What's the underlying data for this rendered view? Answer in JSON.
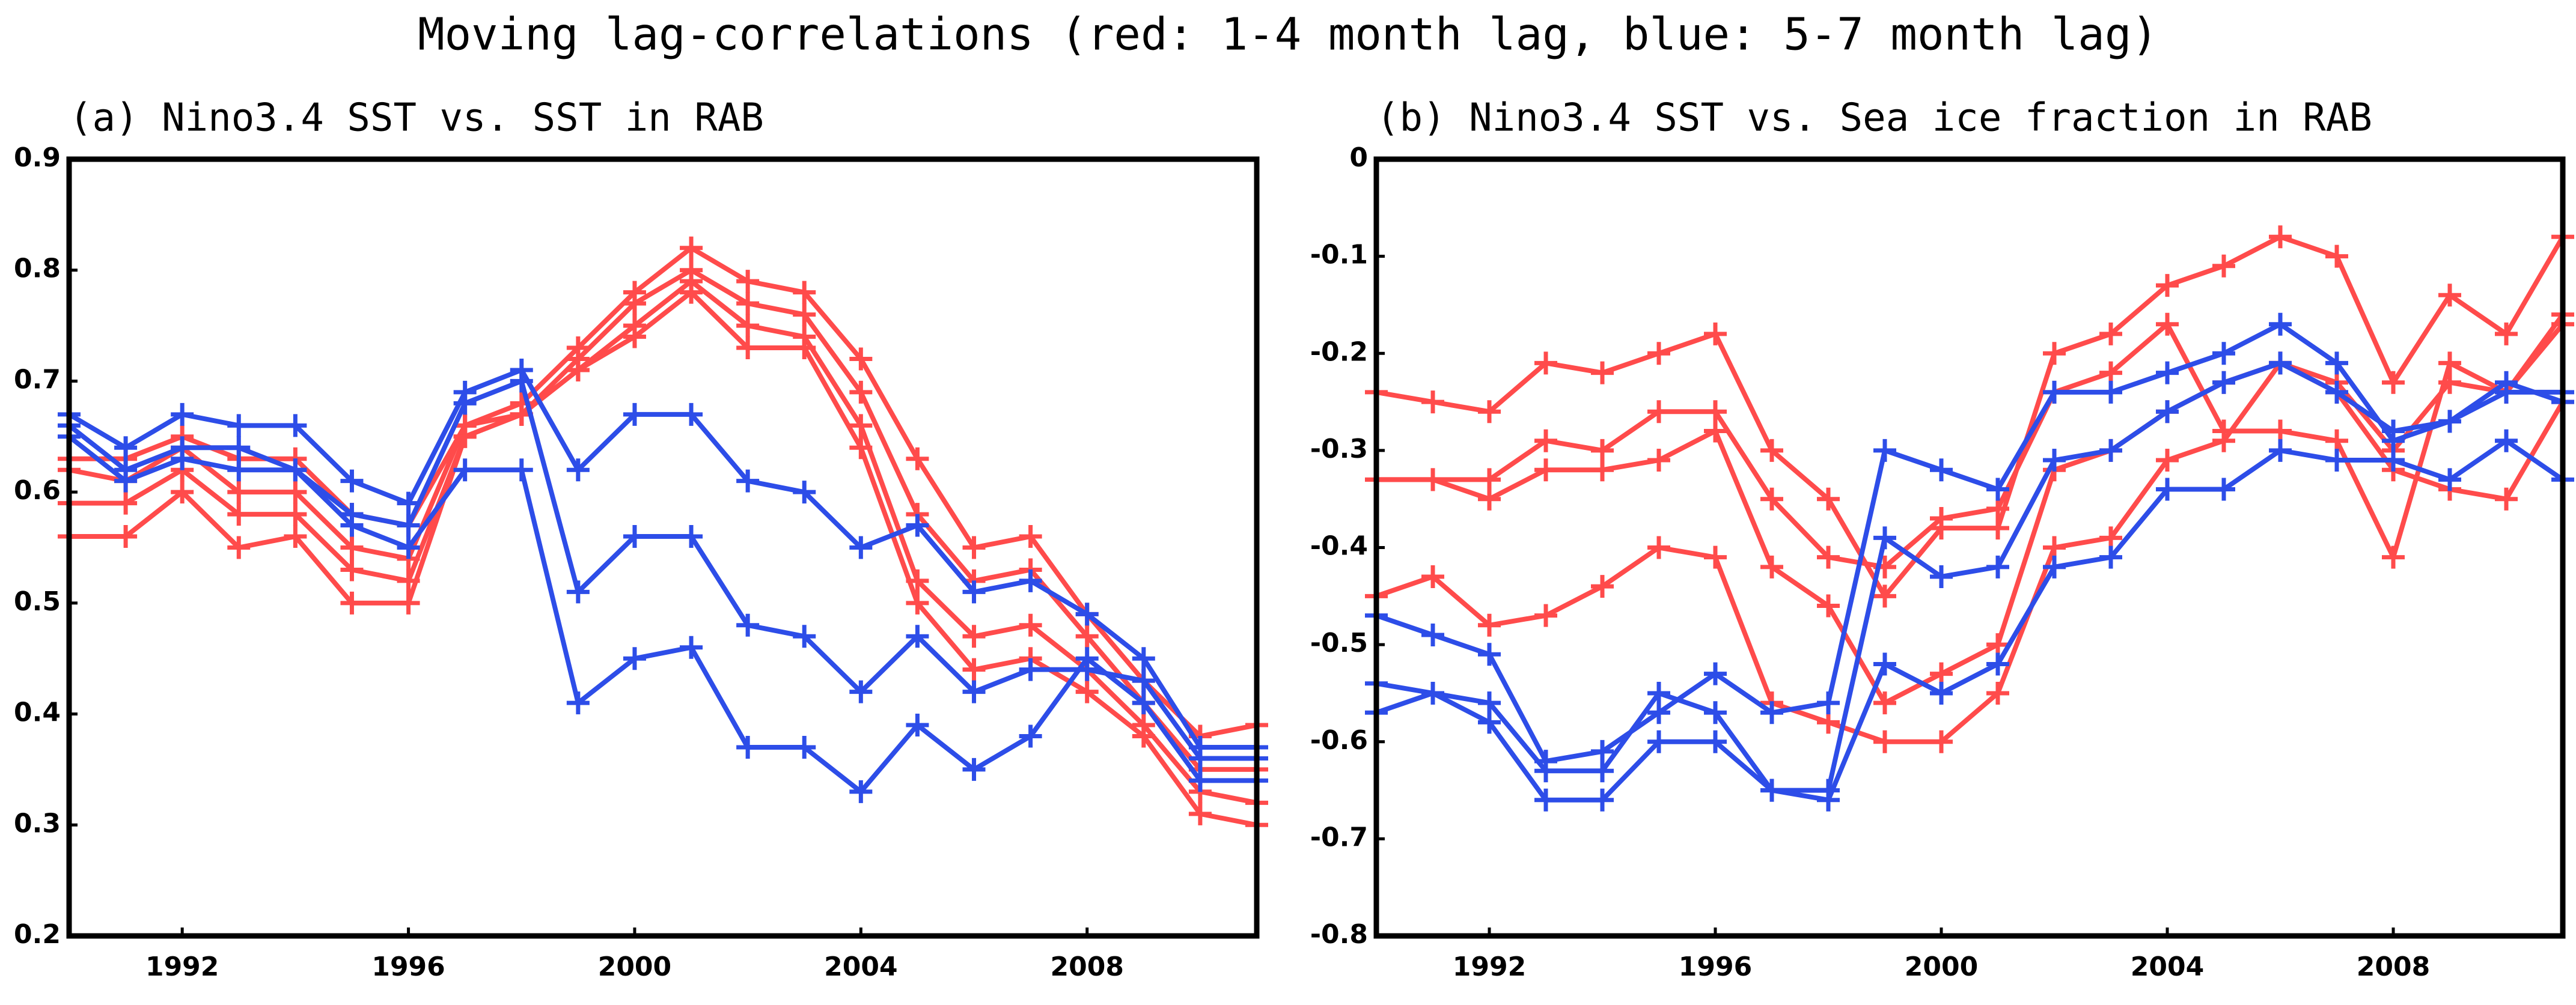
{
  "title": "Moving lag-correlations (red: 1-4 month lag, blue: 5-7 month lag)",
  "chart_data": [
    {
      "type": "line",
      "title": "(a) Nino3.4 SST vs. SST in RAB",
      "x": [
        1990,
        1991,
        1992,
        1993,
        1994,
        1995,
        1996,
        1997,
        1998,
        1999,
        2000,
        2001,
        2002,
        2003,
        2004,
        2005,
        2006,
        2007,
        2008,
        2009,
        2010,
        2011
      ],
      "xlim": [
        1990,
        2011
      ],
      "xticks": [
        1992,
        1996,
        2000,
        2004,
        2008
      ],
      "ylim": [
        0.2,
        0.9
      ],
      "yticks": [
        0.2,
        0.3,
        0.4,
        0.5,
        0.6,
        0.7,
        0.8,
        0.9
      ],
      "series": [
        {
          "color": "#ff4b4b",
          "values": [
            0.63,
            0.63,
            0.65,
            0.63,
            0.63,
            0.58,
            0.57,
            0.66,
            0.68,
            0.73,
            0.78,
            0.82,
            0.79,
            0.78,
            0.72,
            0.63,
            0.55,
            0.56,
            0.49,
            0.43,
            0.38,
            0.39
          ]
        },
        {
          "color": "#ff4b4b",
          "values": [
            0.62,
            0.61,
            0.64,
            0.6,
            0.6,
            0.55,
            0.54,
            0.66,
            0.67,
            0.72,
            0.77,
            0.8,
            0.77,
            0.76,
            0.69,
            0.58,
            0.52,
            0.53,
            0.47,
            0.41,
            0.35,
            0.35
          ]
        },
        {
          "color": "#ff4b4b",
          "values": [
            0.59,
            0.59,
            0.62,
            0.58,
            0.58,
            0.53,
            0.52,
            0.65,
            0.67,
            0.71,
            0.75,
            0.79,
            0.75,
            0.74,
            0.66,
            0.52,
            0.47,
            0.48,
            0.44,
            0.39,
            0.33,
            0.32
          ]
        },
        {
          "color": "#ff4b4b",
          "values": [
            0.56,
            0.56,
            0.6,
            0.55,
            0.56,
            0.5,
            0.5,
            0.65,
            0.67,
            0.71,
            0.74,
            0.78,
            0.73,
            0.73,
            0.64,
            0.5,
            0.44,
            0.45,
            0.42,
            0.38,
            0.31,
            0.3
          ]
        },
        {
          "color": "#2d4de8",
          "values": [
            0.67,
            0.64,
            0.67,
            0.66,
            0.66,
            0.61,
            0.59,
            0.69,
            0.71,
            0.62,
            0.67,
            0.67,
            0.61,
            0.6,
            0.55,
            0.57,
            0.51,
            0.52,
            0.49,
            0.45,
            0.37,
            0.37
          ]
        },
        {
          "color": "#2d4de8",
          "values": [
            0.66,
            0.62,
            0.64,
            0.64,
            0.62,
            0.58,
            0.57,
            0.68,
            0.7,
            0.51,
            0.56,
            0.56,
            0.48,
            0.47,
            0.42,
            0.47,
            0.42,
            0.44,
            0.44,
            0.43,
            0.36,
            0.36
          ]
        },
        {
          "color": "#2d4de8",
          "values": [
            0.65,
            0.61,
            0.63,
            0.62,
            0.62,
            0.57,
            0.55,
            0.62,
            0.62,
            0.41,
            0.45,
            0.46,
            0.37,
            0.37,
            0.33,
            0.39,
            0.35,
            0.38,
            0.45,
            0.41,
            0.34,
            0.34
          ]
        }
      ]
    },
    {
      "type": "line",
      "title": "(b) Nino3.4 SST vs. Sea ice fraction in RAB",
      "x": [
        1990,
        1991,
        1992,
        1993,
        1994,
        1995,
        1996,
        1997,
        1998,
        1999,
        2000,
        2001,
        2002,
        2003,
        2004,
        2005,
        2006,
        2007,
        2008,
        2009,
        2010,
        2011
      ],
      "xlim": [
        1990,
        2011
      ],
      "xticks": [
        1992,
        1996,
        2000,
        2004,
        2008
      ],
      "ylim": [
        -0.8,
        0
      ],
      "yticks": [
        -0.8,
        -0.7,
        -0.6,
        -0.5,
        -0.4,
        -0.3,
        -0.2,
        -0.1,
        0
      ],
      "series": [
        {
          "color": "#ff4b4b",
          "values": [
            -0.24,
            -0.25,
            -0.26,
            -0.21,
            -0.22,
            -0.2,
            -0.18,
            -0.3,
            -0.35,
            -0.45,
            -0.38,
            -0.38,
            -0.2,
            -0.18,
            -0.13,
            -0.11,
            -0.08,
            -0.1,
            -0.23,
            -0.14,
            -0.18,
            -0.08
          ]
        },
        {
          "color": "#ff4b4b",
          "values": [
            -0.33,
            -0.33,
            -0.33,
            -0.29,
            -0.3,
            -0.26,
            -0.26,
            -0.35,
            -0.41,
            -0.42,
            -0.37,
            -0.36,
            -0.24,
            -0.22,
            -0.17,
            -0.28,
            -0.28,
            -0.29,
            -0.41,
            -0.21,
            -0.24,
            -0.16
          ]
        },
        {
          "color": "#ff4b4b",
          "values": [
            -0.33,
            -0.33,
            -0.35,
            -0.32,
            -0.32,
            -0.31,
            -0.28,
            -0.42,
            -0.46,
            -0.56,
            -0.53,
            -0.5,
            -0.32,
            -0.3,
            -0.26,
            -0.23,
            -0.21,
            -0.23,
            -0.3,
            -0.23,
            -0.24,
            -0.17
          ]
        },
        {
          "color": "#ff4b4b",
          "values": [
            -0.45,
            -0.43,
            -0.48,
            -0.47,
            -0.44,
            -0.4,
            -0.41,
            -0.56,
            -0.58,
            -0.6,
            -0.6,
            -0.55,
            -0.4,
            -0.39,
            -0.31,
            -0.29,
            -0.21,
            -0.24,
            -0.32,
            -0.34,
            -0.35,
            -0.25
          ]
        },
        {
          "color": "#2d4de8",
          "values": [
            -0.47,
            -0.49,
            -0.51,
            -0.62,
            -0.61,
            -0.57,
            -0.53,
            -0.57,
            -0.56,
            -0.3,
            -0.32,
            -0.34,
            -0.24,
            -0.24,
            -0.22,
            -0.2,
            -0.17,
            -0.21,
            -0.29,
            -0.27,
            -0.23,
            -0.25
          ]
        },
        {
          "color": "#2d4de8",
          "values": [
            -0.54,
            -0.55,
            -0.56,
            -0.63,
            -0.63,
            -0.55,
            -0.57,
            -0.65,
            -0.65,
            -0.39,
            -0.43,
            -0.42,
            -0.31,
            -0.3,
            -0.26,
            -0.23,
            -0.21,
            -0.24,
            -0.28,
            -0.27,
            -0.24,
            -0.24
          ]
        },
        {
          "color": "#2d4de8",
          "values": [
            -0.57,
            -0.55,
            -0.58,
            -0.66,
            -0.66,
            -0.6,
            -0.6,
            -0.65,
            -0.66,
            -0.52,
            -0.55,
            -0.52,
            -0.42,
            -0.41,
            -0.34,
            -0.34,
            -0.3,
            -0.31,
            -0.31,
            -0.33,
            -0.29,
            -0.33
          ]
        }
      ]
    }
  ]
}
